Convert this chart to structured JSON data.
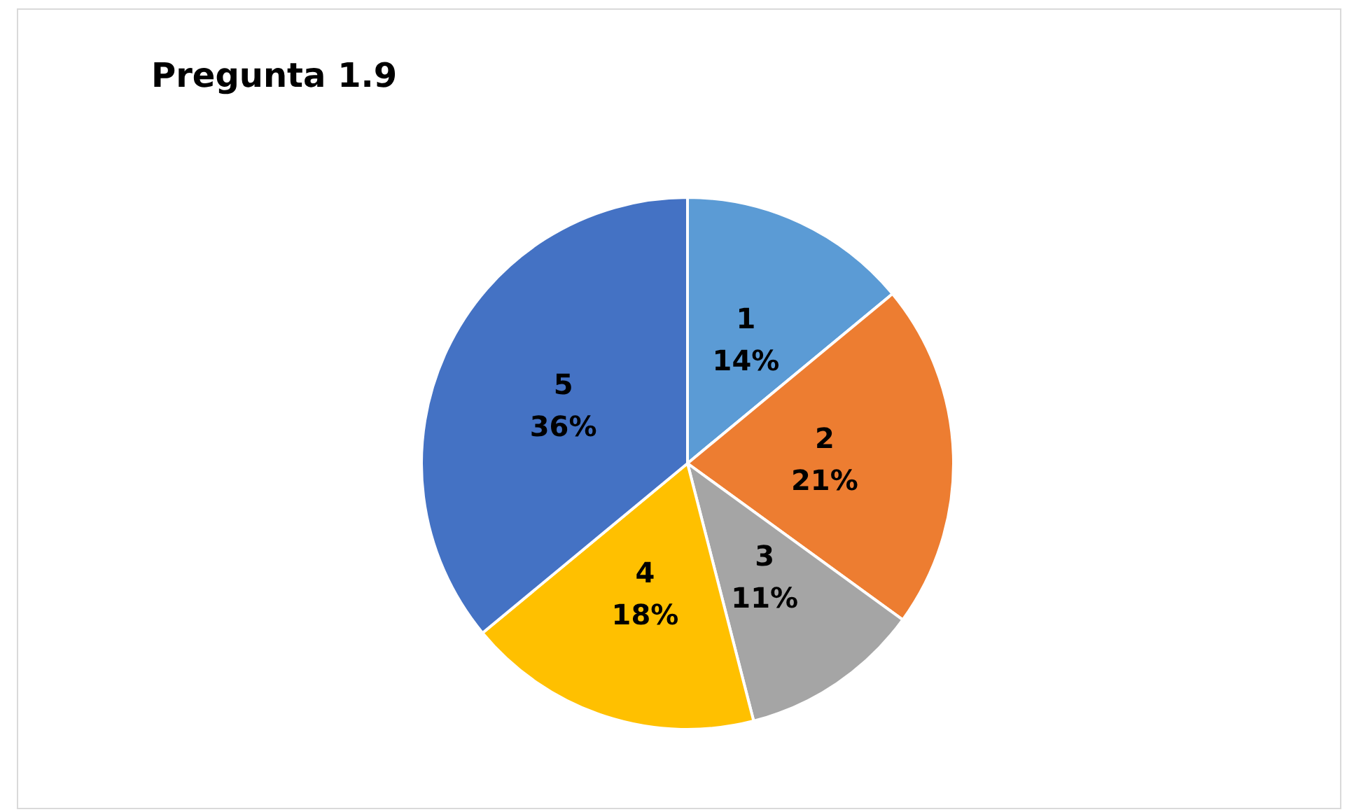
{
  "chart_data": {
    "type": "pie",
    "title": "Pregunta 1.9",
    "categories": [
      "1",
      "2",
      "3",
      "4",
      "5"
    ],
    "values": [
      14,
      21,
      11,
      18,
      36
    ],
    "colors": [
      "#5b9bd5",
      "#ed7d31",
      "#a5a5a5",
      "#ffc000",
      "#4472c4"
    ],
    "value_labels": [
      "14%",
      "21%",
      "11%",
      "18%",
      "36%"
    ],
    "legend": false
  }
}
